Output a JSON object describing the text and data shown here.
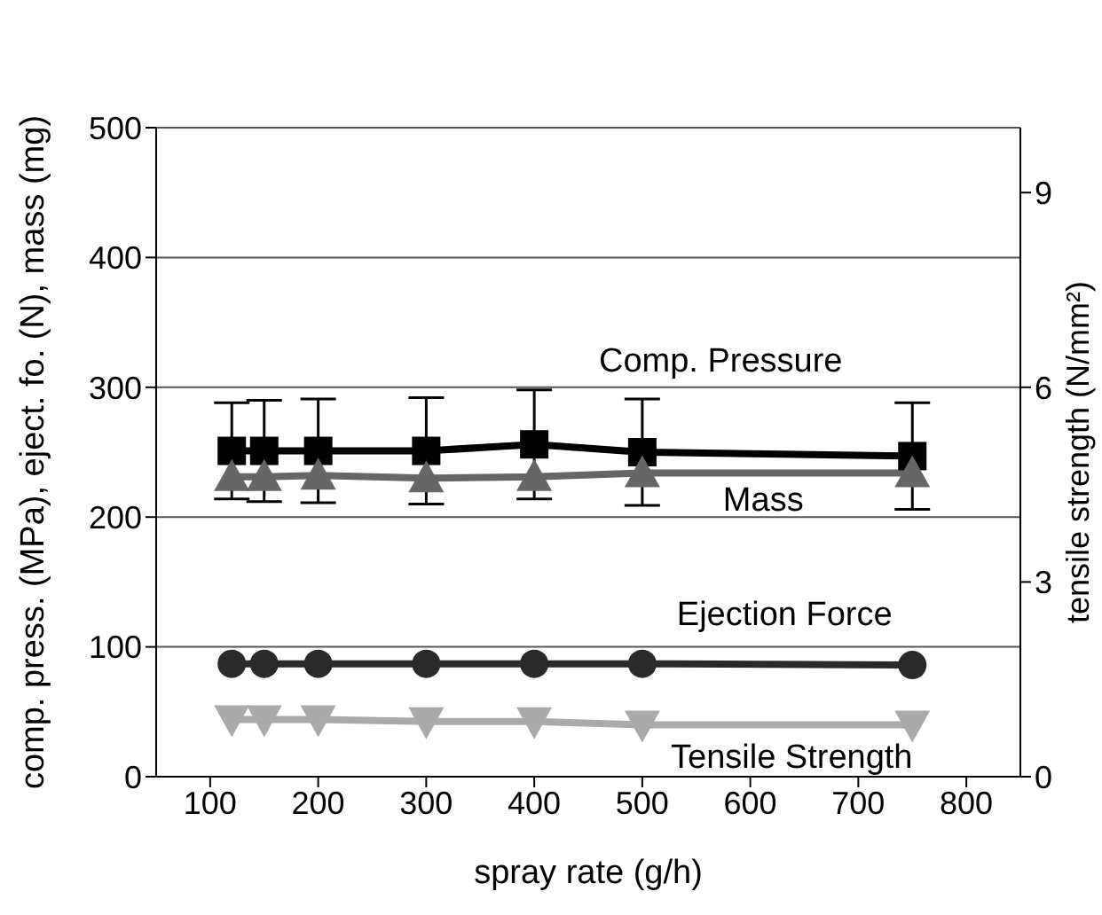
{
  "chart_data": {
    "type": "line",
    "xlabel": "spray rate (g/h)",
    "ylabel": "comp. press. (MPa), eject. fo. (N), mass (mg)",
    "y2label": "tensile strength (N/mm²)",
    "x": [
      120,
      150,
      200,
      300,
      400,
      500,
      750
    ],
    "series": [
      {
        "name": "Comp. Pressure",
        "color": "#000000",
        "marker": "square",
        "values": [
          251,
          251,
          251,
          251,
          256,
          250,
          247
        ],
        "errors": [
          37,
          39,
          40,
          41,
          42,
          41,
          41
        ]
      },
      {
        "name": "Mass",
        "color": "#666666",
        "marker": "triangle",
        "values": [
          231,
          231,
          232,
          230,
          231,
          234,
          234
        ]
      },
      {
        "name": "Ejection Force",
        "color": "#2a2a2a",
        "marker": "circle",
        "values": [
          87,
          87,
          87,
          87,
          87,
          87,
          86
        ]
      },
      {
        "name": "Tensile Strength",
        "color": "#aaaaaa",
        "marker": "triangle-down",
        "axis": "y2",
        "values": [
          0.88,
          0.88,
          0.88,
          0.85,
          0.85,
          0.8,
          0.8
        ]
      }
    ],
    "xlim": [
      50,
      850
    ],
    "xticks": [
      100,
      200,
      300,
      400,
      500,
      600,
      700,
      800
    ],
    "ylim": [
      0,
      500
    ],
    "yticks": [
      0,
      100,
      200,
      300,
      400,
      500
    ],
    "y2lim": [
      0,
      10
    ],
    "y2ticks": [
      0,
      3,
      6,
      9
    ],
    "grid": "y",
    "legend": false,
    "line_style": "solid"
  }
}
